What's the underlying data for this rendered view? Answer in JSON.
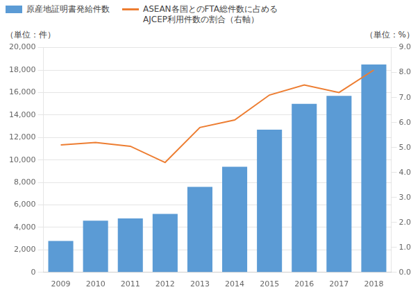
{
  "chart_data": {
    "type": "bar",
    "categories": [
      "2009",
      "2010",
      "2011",
      "2012",
      "2013",
      "2014",
      "2015",
      "2016",
      "2017",
      "2018"
    ],
    "series": [
      {
        "name": "原産地証明書発給件数",
        "type": "bar",
        "color": "#5B9BD5",
        "values": [
          2800,
          4600,
          4800,
          5200,
          7600,
          9400,
          12700,
          15000,
          15700,
          18500
        ]
      },
      {
        "name": "ASEAN各国とのFTA総件数に占める\nAJCEP利用件数の割合（右軸）",
        "type": "line",
        "color": "#ED7D31",
        "axis": "y2",
        "values": [
          5.1,
          5.2,
          5.05,
          4.4,
          5.8,
          6.1,
          7.1,
          7.5,
          7.2,
          8.1
        ]
      }
    ],
    "ylabel": "（単位：件）",
    "y2label": "（単位：%）",
    "ylim": [
      0,
      20000
    ],
    "yticks": [
      0,
      {
        "value": 2000,
        "label": "2,000"
      },
      {
        "value": 4000,
        "label": "4,000"
      },
      {
        "value": 6000,
        "label": "6,000"
      },
      {
        "value": 8000,
        "label": "8,000"
      },
      {
        "value": 10000,
        "label": "10,000"
      },
      {
        "value": 12000,
        "label": "12,000"
      },
      {
        "value": 14000,
        "label": "14,000"
      },
      {
        "value": 16000,
        "label": "16,000"
      },
      {
        "value": 18000,
        "label": "18,000"
      },
      {
        "value": 20000,
        "label": "20,000"
      }
    ],
    "y2lim": [
      0.0,
      9.0
    ],
    "y2ticks": [
      {
        "value": 0,
        "label": "0.0"
      },
      {
        "value": 1,
        "label": "1.0"
      },
      {
        "value": 2,
        "label": "2.0"
      },
      {
        "value": 3,
        "label": "3.0"
      },
      {
        "value": 4,
        "label": "4.0"
      },
      {
        "value": 5,
        "label": "5.0"
      },
      {
        "value": 6,
        "label": "6.0"
      },
      {
        "value": 7,
        "label": "7.0"
      },
      {
        "value": 8,
        "label": "8.0"
      },
      {
        "value": 9,
        "label": "9.0"
      }
    ],
    "grid": true,
    "legend": "upper left"
  }
}
